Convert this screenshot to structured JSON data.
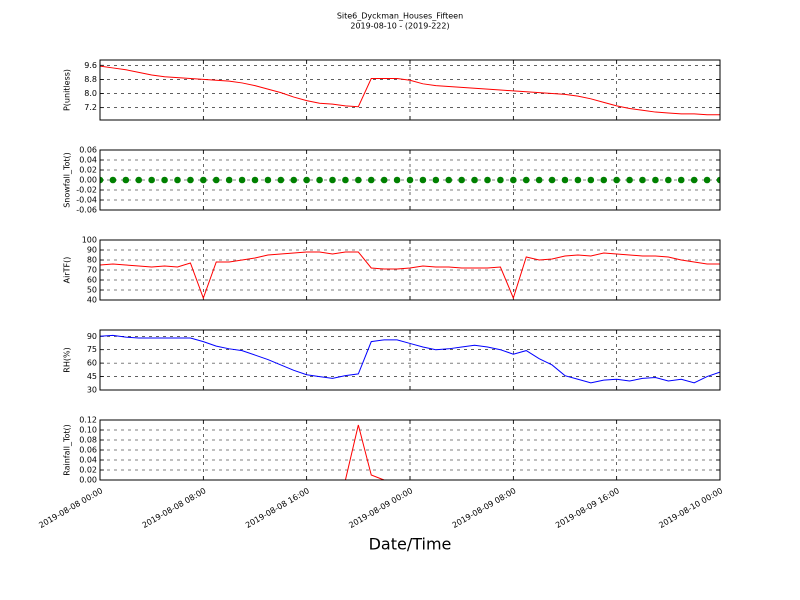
{
  "chart_data": {
    "title": "Site6_Dyckman_Houses_Fifteen",
    "subtitle": "2019-08-10 - (2019-222)",
    "xlabel": "Date/Time",
    "grid": true,
    "xlim": [
      "2019-08-08 00:00",
      "2019-08-10 00:00"
    ],
    "xticks": [
      "2019-08-08 00:00",
      "2019-08-08 08:00",
      "2019-08-08 16:00",
      "2019-08-09 00:00",
      "2019-08-09 08:00",
      "2019-08-09 16:00",
      "2019-08-10 00:00"
    ],
    "x": [
      "2019-08-08 00:00",
      "2019-08-08 01:00",
      "2019-08-08 02:00",
      "2019-08-08 03:00",
      "2019-08-08 04:00",
      "2019-08-08 05:00",
      "2019-08-08 06:00",
      "2019-08-08 07:00",
      "2019-08-08 08:00",
      "2019-08-08 09:00",
      "2019-08-08 10:00",
      "2019-08-08 11:00",
      "2019-08-08 12:00",
      "2019-08-08 13:00",
      "2019-08-08 14:00",
      "2019-08-08 15:00",
      "2019-08-08 16:00",
      "2019-08-08 17:00",
      "2019-08-08 18:00",
      "2019-08-08 19:00",
      "2019-08-08 20:00",
      "2019-08-08 21:00",
      "2019-08-08 22:00",
      "2019-08-08 23:00",
      "2019-08-09 00:00",
      "2019-08-09 01:00",
      "2019-08-09 02:00",
      "2019-08-09 03:00",
      "2019-08-09 04:00",
      "2019-08-09 05:00",
      "2019-08-09 06:00",
      "2019-08-09 07:00",
      "2019-08-09 08:00",
      "2019-08-09 09:00",
      "2019-08-09 10:00",
      "2019-08-09 11:00",
      "2019-08-09 12:00",
      "2019-08-09 13:00",
      "2019-08-09 14:00",
      "2019-08-09 15:00",
      "2019-08-09 16:00",
      "2019-08-09 17:00",
      "2019-08-09 18:00",
      "2019-08-09 19:00",
      "2019-08-09 20:00",
      "2019-08-09 21:00",
      "2019-08-09 22:00",
      "2019-08-09 23:00",
      "2019-08-10 00:00"
    ],
    "panels": [
      {
        "type": "line",
        "ylabel": "P(unitless)",
        "ylim": [
          6.5,
          9.9
        ],
        "yticks": [
          {
            "value": 7.2,
            "label": "7.2"
          },
          {
            "value": 8,
            "label": "8.0"
          },
          {
            "value": 8.8,
            "label": "8.8"
          },
          {
            "value": 9.6,
            "label": "9.6"
          }
        ],
        "series": [
          {
            "name": "P",
            "color": "#ff0000",
            "values": [
              9.55,
              9.45,
              9.35,
              9.2,
              9.05,
              8.95,
              8.9,
              8.85,
              8.8,
              8.75,
              8.7,
              8.6,
              8.45,
              8.25,
              8.05,
              7.8,
              7.6,
              7.45,
              7.4,
              7.3,
              7.25,
              8.85,
              8.85,
              8.85,
              8.75,
              8.55,
              8.45,
              8.4,
              8.35,
              8.3,
              8.25,
              8.2,
              8.15,
              8.1,
              8.05,
              8.0,
              7.95,
              7.85,
              7.7,
              7.5,
              7.3,
              7.15,
              7.05,
              6.95,
              6.9,
              6.85,
              6.85,
              6.8,
              6.8
            ]
          }
        ]
      },
      {
        "type": "scatter",
        "ylabel": "Snowfall_Tot()",
        "ylim": [
          -0.06,
          0.06
        ],
        "yticks": [
          {
            "value": -0.06,
            "label": "-0.06"
          },
          {
            "value": -0.04,
            "label": "-0.04"
          },
          {
            "value": -0.02,
            "label": "-0.02"
          },
          {
            "value": 0,
            "label": "0.00"
          },
          {
            "value": 0.02,
            "label": "0.02"
          },
          {
            "value": 0.04,
            "label": "0.04"
          },
          {
            "value": 0.06,
            "label": "0.06"
          }
        ],
        "series": [
          {
            "name": "Snowfall_Tot",
            "color": "#008000",
            "values": [
              0,
              0,
              0,
              0,
              0,
              0,
              0,
              0,
              0,
              0,
              0,
              0,
              0,
              0,
              0,
              0,
              0,
              0,
              0,
              0,
              0,
              0,
              0,
              0,
              0,
              0,
              0,
              0,
              0,
              0,
              0,
              0,
              0,
              0,
              0,
              0,
              0,
              0,
              0,
              0,
              0,
              0,
              0,
              0,
              0,
              0,
              0,
              0,
              0
            ]
          }
        ]
      },
      {
        "type": "line",
        "ylabel": "AirTF()",
        "ylim": [
          40,
          100
        ],
        "yticks": [
          40,
          50,
          60,
          70,
          80,
          90,
          100
        ],
        "series": [
          {
            "name": "AirTF",
            "color": "#ff0000",
            "values": [
              75,
              76,
              75,
              74,
              73,
              74,
              73,
              77,
              42,
              78,
              78,
              80,
              82,
              85,
              86,
              87,
              88,
              88,
              86,
              88,
              88,
              72,
              71,
              71,
              72,
              74,
              73,
              73,
              72,
              72,
              72,
              73,
              42,
              83,
              80,
              81,
              84,
              85,
              84,
              87,
              86,
              85,
              84,
              84,
              83,
              80,
              78,
              76,
              76
            ]
          }
        ]
      },
      {
        "type": "line",
        "ylabel": "RH(%)",
        "ylim": [
          30,
          97
        ],
        "yticks": [
          30,
          45,
          60,
          75,
          90
        ],
        "series": [
          {
            "name": "RH",
            "color": "#0000ff",
            "values": [
              90,
              91,
              89,
              88,
              88,
              88,
              88,
              88,
              84,
              79,
              76,
              74,
              69,
              64,
              58,
              52,
              47,
              45,
              43,
              46,
              48,
              84,
              86,
              86,
              82,
              78,
              75,
              76,
              78,
              80,
              78,
              75,
              70,
              74,
              65,
              58,
              46,
              42,
              38,
              41,
              42,
              40,
              43,
              44,
              40,
              42,
              38,
              45,
              50
            ]
          }
        ]
      },
      {
        "type": "line",
        "ylabel": "Rainfall_Tot()",
        "ylim": [
          0,
          0.12
        ],
        "yticks": [
          {
            "value": 0,
            "label": "0.00"
          },
          {
            "value": 0.02,
            "label": "0.02"
          },
          {
            "value": 0.04,
            "label": "0.04"
          },
          {
            "value": 0.06,
            "label": "0.06"
          },
          {
            "value": 0.08,
            "label": "0.08"
          },
          {
            "value": 0.1,
            "label": "0.10"
          },
          {
            "value": 0.12,
            "label": "0.12"
          }
        ],
        "series": [
          {
            "name": "Rainfall_Tot",
            "color": "#ff0000",
            "values": [
              0,
              0,
              0,
              0,
              0,
              0,
              0,
              0,
              0,
              0,
              0,
              0,
              0,
              0,
              0,
              0,
              0,
              0,
              0,
              0,
              0.11,
              0.01,
              0,
              0,
              0,
              0,
              0,
              0,
              0,
              0,
              0,
              0,
              0,
              0,
              0,
              0,
              0,
              0,
              0,
              0,
              0,
              0,
              0,
              0,
              0,
              0,
              0,
              0,
              0
            ]
          }
        ]
      }
    ]
  }
}
